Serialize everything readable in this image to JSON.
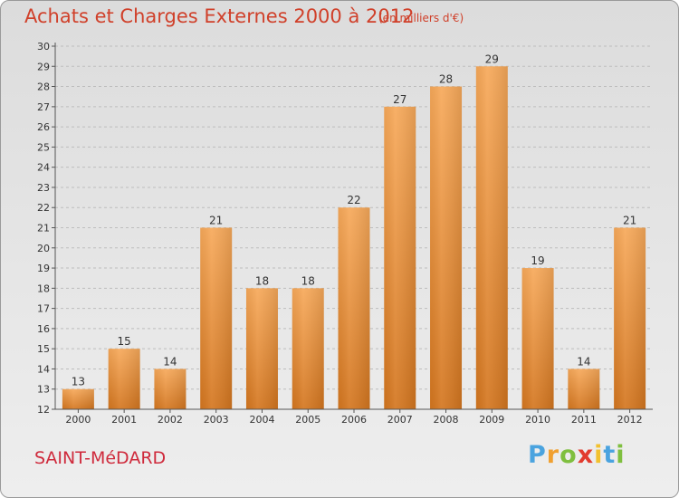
{
  "header": {
    "title": "Achats et Charges Externes 2000 à 2012",
    "subtitle": "(en milliers d'€)"
  },
  "footer": {
    "commune": "SAINT-MéDARD",
    "logo_letters": [
      "P",
      "r",
      "o",
      "x",
      "i",
      "t",
      "i"
    ],
    "logo_colors": [
      "#4aa3df",
      "#f0a030",
      "#7fbf3f",
      "#e23b2e",
      "#f2c12e",
      "#4aa3df",
      "#7fbf3f"
    ]
  },
  "colors": {
    "bar_top": "#f7a95a",
    "bar_bottom": "#d4761f",
    "title": "#d0402a"
  },
  "chart_data": {
    "type": "bar",
    "title": "Achats et Charges Externes 2000 à 2012",
    "subtitle": "(en milliers d'€)",
    "categories": [
      "2000",
      "2001",
      "2002",
      "2003",
      "2004",
      "2005",
      "2006",
      "2007",
      "2008",
      "2009",
      "2010",
      "2011",
      "2012"
    ],
    "values": [
      13,
      15,
      14,
      21,
      18,
      18,
      22,
      27,
      28,
      29,
      19,
      14,
      21
    ],
    "ylim": [
      12,
      30
    ],
    "yticks": [
      12,
      13,
      14,
      15,
      16,
      17,
      18,
      19,
      20,
      21,
      22,
      23,
      24,
      25,
      26,
      27,
      28,
      29,
      30
    ],
    "grid": true,
    "legend": "none"
  }
}
